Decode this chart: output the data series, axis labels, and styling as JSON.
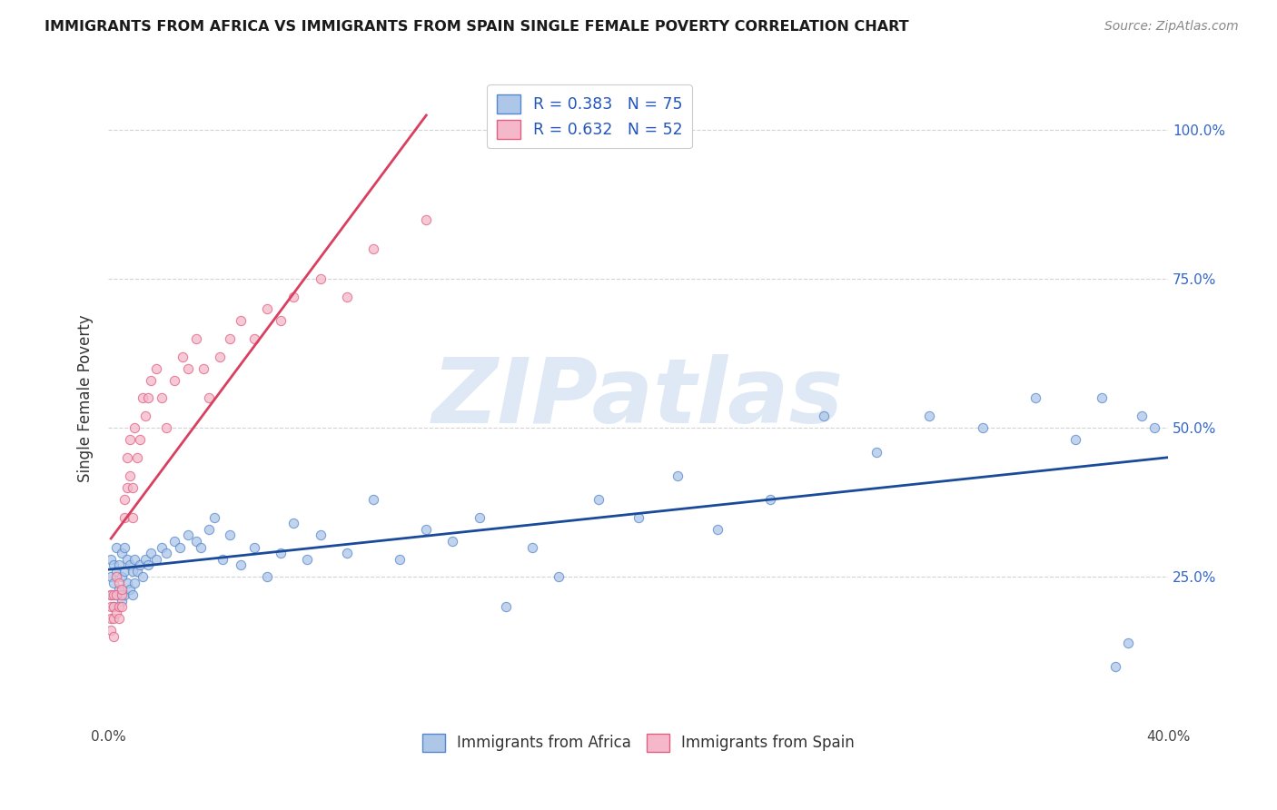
{
  "title": "IMMIGRANTS FROM AFRICA VS IMMIGRANTS FROM SPAIN SINGLE FEMALE POVERTY CORRELATION CHART",
  "source": "Source: ZipAtlas.com",
  "ylabel": "Single Female Poverty",
  "ytick_labels": [
    "100.0%",
    "75.0%",
    "50.0%",
    "25.0%"
  ],
  "ytick_values": [
    1.0,
    0.75,
    0.5,
    0.25
  ],
  "xlim": [
    0.0,
    0.4
  ],
  "ylim": [
    0.0,
    1.1
  ],
  "africa_color": "#aec6e8",
  "africa_edge": "#5588cc",
  "spain_color": "#f4b8ca",
  "spain_edge": "#e06080",
  "africa_line_color": "#1a4a9a",
  "spain_line_color": "#d94060",
  "africa_R": 0.383,
  "africa_N": 75,
  "spain_R": 0.632,
  "spain_N": 52,
  "legend_label_color": "#2255bb",
  "background_color": "#ffffff",
  "watermark_text": "ZIPatlas",
  "watermark_color": "#c5d8ee",
  "africa_legend": "Immigrants from Africa",
  "spain_legend": "Immigrants from Spain",
  "africa_x": [
    0.001,
    0.001,
    0.001,
    0.002,
    0.002,
    0.002,
    0.003,
    0.003,
    0.003,
    0.004,
    0.004,
    0.005,
    0.005,
    0.005,
    0.006,
    0.006,
    0.006,
    0.007,
    0.007,
    0.008,
    0.008,
    0.009,
    0.009,
    0.01,
    0.01,
    0.011,
    0.012,
    0.013,
    0.014,
    0.015,
    0.016,
    0.018,
    0.02,
    0.022,
    0.025,
    0.027,
    0.03,
    0.033,
    0.035,
    0.038,
    0.04,
    0.043,
    0.046,
    0.05,
    0.055,
    0.06,
    0.065,
    0.07,
    0.075,
    0.08,
    0.09,
    0.1,
    0.11,
    0.12,
    0.13,
    0.14,
    0.15,
    0.16,
    0.17,
    0.185,
    0.2,
    0.215,
    0.23,
    0.25,
    0.27,
    0.29,
    0.31,
    0.33,
    0.35,
    0.365,
    0.375,
    0.38,
    0.385,
    0.39,
    0.395
  ],
  "africa_y": [
    0.22,
    0.25,
    0.28,
    0.2,
    0.24,
    0.27,
    0.22,
    0.26,
    0.3,
    0.23,
    0.27,
    0.21,
    0.25,
    0.29,
    0.22,
    0.26,
    0.3,
    0.24,
    0.28,
    0.23,
    0.27,
    0.22,
    0.26,
    0.24,
    0.28,
    0.26,
    0.27,
    0.25,
    0.28,
    0.27,
    0.29,
    0.28,
    0.3,
    0.29,
    0.31,
    0.3,
    0.32,
    0.31,
    0.3,
    0.33,
    0.35,
    0.28,
    0.32,
    0.27,
    0.3,
    0.25,
    0.29,
    0.34,
    0.28,
    0.32,
    0.29,
    0.38,
    0.28,
    0.33,
    0.31,
    0.35,
    0.2,
    0.3,
    0.25,
    0.38,
    0.35,
    0.42,
    0.33,
    0.38,
    0.52,
    0.46,
    0.52,
    0.5,
    0.55,
    0.48,
    0.55,
    0.1,
    0.14,
    0.52,
    0.5
  ],
  "spain_x": [
    0.001,
    0.001,
    0.001,
    0.001,
    0.002,
    0.002,
    0.002,
    0.002,
    0.003,
    0.003,
    0.003,
    0.004,
    0.004,
    0.004,
    0.005,
    0.005,
    0.005,
    0.006,
    0.006,
    0.007,
    0.007,
    0.008,
    0.008,
    0.009,
    0.009,
    0.01,
    0.011,
    0.012,
    0.013,
    0.014,
    0.015,
    0.016,
    0.018,
    0.02,
    0.022,
    0.025,
    0.028,
    0.03,
    0.033,
    0.036,
    0.038,
    0.042,
    0.046,
    0.05,
    0.055,
    0.06,
    0.065,
    0.07,
    0.08,
    0.09,
    0.1,
    0.12
  ],
  "spain_y": [
    0.2,
    0.22,
    0.18,
    0.16,
    0.2,
    0.22,
    0.18,
    0.15,
    0.22,
    0.19,
    0.25,
    0.2,
    0.24,
    0.18,
    0.22,
    0.2,
    0.23,
    0.38,
    0.35,
    0.4,
    0.45,
    0.42,
    0.48,
    0.35,
    0.4,
    0.5,
    0.45,
    0.48,
    0.55,
    0.52,
    0.55,
    0.58,
    0.6,
    0.55,
    0.5,
    0.58,
    0.62,
    0.6,
    0.65,
    0.6,
    0.55,
    0.62,
    0.65,
    0.68,
    0.65,
    0.7,
    0.68,
    0.72,
    0.75,
    0.72,
    0.8,
    0.85
  ]
}
